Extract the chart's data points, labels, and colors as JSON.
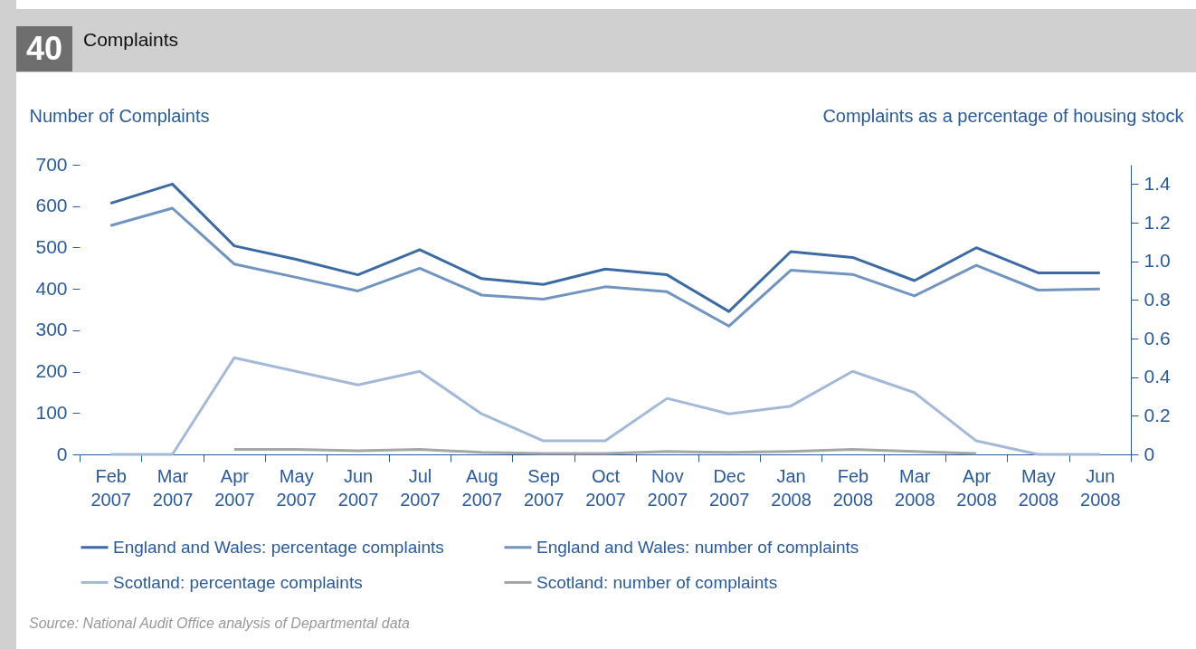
{
  "chart_data": {
    "type": "line",
    "title": "Complaints",
    "ylabel": "Number of Complaints",
    "y2label": "Complaints as a percentage of housing stock",
    "annotations": [
      "40",
      "Source: National Audit Office analysis of Departmental data"
    ],
    "categories": [
      "Feb 2007",
      "Mar 2007",
      "Apr 2007",
      "May 2007",
      "Jun 2007",
      "Jul 2007",
      "Aug 2007",
      "Sep 2007",
      "Oct 2007",
      "Nov 2007",
      "Dec 2007",
      "Jan 2008",
      "Feb 2008",
      "Mar 2008",
      "Apr 2008",
      "May 2008",
      "Jun 2008"
    ],
    "series": [
      {
        "name": "England and Wales: percentage complaints",
        "color": "#3c6aa3",
        "axis": "y2",
        "values": [
          1.3,
          1.4,
          1.08,
          1.01,
          0.93,
          1.06,
          0.91,
          0.88,
          0.96,
          0.93,
          0.74,
          1.05,
          1.02,
          0.9,
          1.07,
          0.94,
          0.94
        ]
      },
      {
        "name": "England and Wales: number of complaints",
        "color": "#7194c0",
        "values": [
          553,
          595,
          460,
          428,
          395,
          450,
          385,
          375,
          405,
          393,
          310,
          445,
          435,
          383,
          457,
          397,
          400
        ]
      },
      {
        "name": "Scotland: percentage complaints",
        "color": "#a4b9d7",
        "axis": "y2",
        "values": [
          0,
          0,
          0.5,
          0.43,
          0.36,
          0.43,
          0.21,
          0.07,
          0.07,
          0.29,
          0.21,
          0.25,
          0.43,
          0.32,
          0.07,
          0,
          0
        ]
      },
      {
        "name": "Scotland: number of complaints",
        "color": "#a6a6a6",
        "values": [
          null,
          null,
          12,
          12,
          9,
          12,
          5,
          2,
          2,
          7,
          5,
          7,
          12,
          7,
          2,
          null,
          null
        ]
      }
    ],
    "ylim": [
      0,
      700
    ],
    "yticks": [
      0,
      100,
      200,
      300,
      400,
      500,
      600,
      700
    ],
    "y2lim": [
      0,
      1.5
    ],
    "y2ticks": [
      0,
      {
        "value": 0.2,
        "label": "0.2"
      },
      {
        "value": 0.4,
        "label": "0.4"
      },
      {
        "value": 0.6,
        "label": "0.6"
      },
      {
        "value": 0.8,
        "label": "0.8"
      },
      {
        "value": 1.0,
        "label": "1.0"
      },
      {
        "value": 1.2,
        "label": "1.2"
      },
      {
        "value": 1.4,
        "label": "1.4"
      }
    ],
    "grid": false,
    "legend": "bottom",
    "marker": "none",
    "line_style": "solid"
  }
}
